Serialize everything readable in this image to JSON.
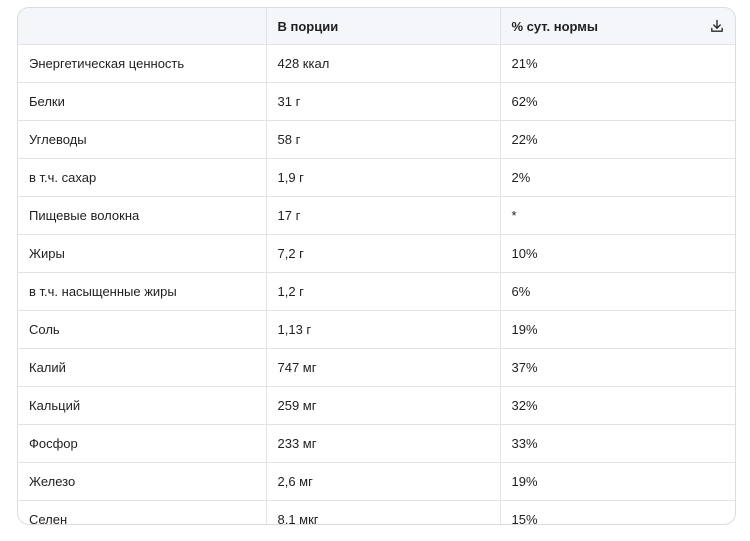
{
  "table": {
    "headers": [
      "",
      "В порции",
      "% сут. нормы"
    ],
    "download_icon": "download-icon",
    "rows": [
      [
        "Энергетическая ценность",
        "428 ккал",
        "21%"
      ],
      [
        "Белки",
        "31 г",
        "62%"
      ],
      [
        "Углеводы",
        "58 г",
        "22%"
      ],
      [
        "в т.ч. сахар",
        "1,9 г",
        "2%"
      ],
      [
        "Пищевые волокна",
        "17 г",
        "*"
      ],
      [
        "Жиры",
        "7,2 г",
        "10%"
      ],
      [
        "в т.ч. насыщенные жиры",
        "1,2 г",
        "6%"
      ],
      [
        "Соль",
        "1,13 г",
        "19%"
      ],
      [
        "Калий",
        "747 мг",
        "37%"
      ],
      [
        "Кальций",
        "259 мг",
        "32%"
      ],
      [
        "Фосфор",
        "233 мг",
        "33%"
      ],
      [
        "Железо",
        "2,6 мг",
        "19%"
      ],
      [
        "Селен",
        "8,1 мкг",
        "15%"
      ]
    ]
  }
}
